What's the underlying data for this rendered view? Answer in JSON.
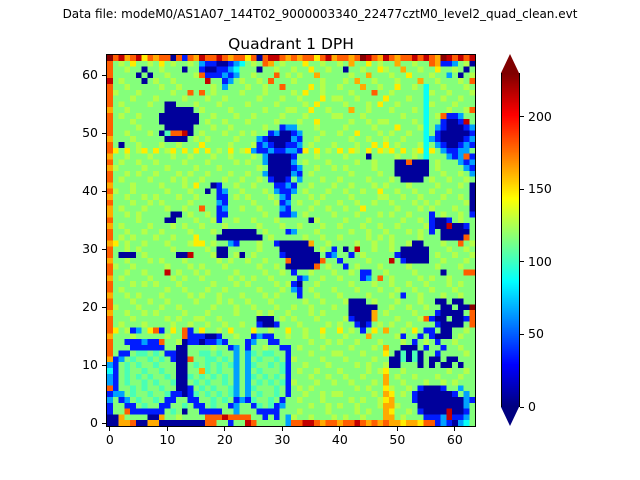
{
  "figure": {
    "datafile_label": "Data file: modeM0/AS1A07_144T02_9000003340_22477cztM0_level2_quad_clean.evt",
    "background": "#ffffff"
  },
  "chart_data": {
    "type": "heatmap",
    "title": "Quadrant 1 DPH",
    "xlabel": "",
    "ylabel": "",
    "x_ticks": [
      0,
      10,
      20,
      30,
      40,
      50,
      60
    ],
    "y_ticks": [
      0,
      10,
      20,
      30,
      40,
      50,
      60
    ],
    "x_range": [
      -0.5,
      63.5
    ],
    "y_range": [
      -0.5,
      63.5
    ],
    "grid_size": 64,
    "colormap": "jet",
    "vmin": 0,
    "vmax": 230,
    "colorbar": {
      "ticks": [
        0,
        50,
        100,
        150,
        200
      ],
      "extend": "both",
      "over_color": "#800000",
      "under_color": "#000080"
    },
    "value_levels": {
      "0": 6,
      "1": 35,
      "2": 65,
      "3": 88,
      "4": 103,
      "5": 116,
      "6": 127,
      "7": 148,
      "8": 163,
      "9": 180,
      "A": 215,
      "B": 228
    },
    "encoding": "rows_top_to_bottom: 64 strings, first string is detector row y=63, last is y=0; each character is one pixel (x=0..63 left to right) indexing value_levels (approximate counts)",
    "rows_top_to_bottom": [
      "B9A89A7989909198A99A98997909AA98989979A89989BA98A9899A9A98BA9A9A",
      "956575565756556521100123565985655575565565855756558556559811,2560",
      "9556550556555055100112355505565565575565505565576558556557556505",
      "9555505055655556911121255655595656558555556558555655755565525056",
      "A5655505655655555A5512565565955565555655565855655565558556555659",
      "9556555556556555556525556556559555575655655585565575565355655565",
      "9655565555565595956555565556555565755655556555955655555365565556",
      "9555655565555655565565555565556556555756655655557555655355655655",
      "9565555655005556555655556555565555657555565556575565555365556555",
      "8556555555000005655556555556555665575565558556555655565355565569",
      "9565565550000000556555655655556555655556655565555556555356911255",
      "95556555500000005655655565555655565575555565565665555653551001A5",
      "9555565555000005556556555556551225556555565555655575556352100012",
      "955655565049 9A0565556556565512001255565565575556565565535100 0001",
      "8555655555000056565555655521000021556555556556556556555321000012",
      "9505565556556555755556555612100112565556555655757565556352100121",
      "9757567575675757575657567211211221757565757657576757567375211225",
      "8556555655565565556556555652000015556555565550555565565355521291",
      "9565565565555655565555656552000025655565555655655500900056555212",
      "8655556555655556555655555565000012556556565555655500000056555521",
      "9556565565556565565556556552000021565555556555565500000055655652",
      "9565555655565655655565565565100152555655655556555650000565565565",
      "8555655556555657550155655655511215565556556555656555655556555650",
      "9655655555655565505125565556521125655565565565575565565565565550",
      "8556556565556556555115656555652155565655556555566556556555655650",
      "9555655656555565555215555655561256556555655655655655565656555560",
      "8565556555655655955125565565552155565565565575555565556565556550",
      "8556565555500565565115555556551125655556555655565655655515655651",
      "9555565555005556556155655655565555506555565556555556556510015655",
      "85655556555656556555655555655565565556556555655655655556100A0015",
      "9556556556555565556500000056555125556555556556556555656515000005",
      "9565655565565557555000000005655555655655655556565655556555000095",
      "8756556555655567756552155565510000085565555655655655600555655956",
      "95565655555655555650055555655500000056515 05A55655650000055565565",
      "95000565555500A555600560565555100000051255156555551000005655655 6",
      "855655565655565555565655655655590000095515555655 5A51000055655565",
      "9655655555655565655565555565565000009565515655565555655556555655",
      "9556556555A565565655556555565565155655565565115565555655550555 99",
      "8565555655565655655556565655655551255655655512595655556565565555",
      "9555656565556555556555656555565610556555556555655655655655565655",
      "9565555555655655565565555565556521565556555655565565565565556555",
      "8556565556555565655655565556565551556555655556555651556555655655",
      "9555655655655556555656556555655555655655560005655565556550050055",
      "96555655565565555565556556555655655655565500000556556556550 0500B",
      "8556556565555655565555655565655655565655550000856555565551000059",
      "9555655555656556655655555500056565556555561000855565556910050019",
      "9565556555565565565565565510015556555565655101565655655551000059",
      "9756125791575915755657555755655755655755756515758556575115005565",
      "8555655555655911100155655121155655655655565558555561551510005655",
      "9551112119556011011215551255115555565565655655565556515651556555",
      "9555111111550055556551251556551156555655556555658550005155155655",
      "9511544545110055445455252454455155565556655565557504040551555565",
      "8125455454510095544545252545545165555655565555655004040500500555",
      "2154545545550054545454252455454155655565555656556005550505005055",
      "3154554554550055845455252545554156556555655556567556555555565565",
      "2154545455450045454545252454545155565565565565558565565556555655",
      "2154554545540054545545252545454165556556556555658556555655656555",
      "9155454554550015454554252455545156565555555656557655651000155255",
      "1225455455411014545454252545545155655656655555658756510000001525",
      "2512545545115511554545121455451556555655556565567855510000000021",
      "1551154551155451154551255145412555565565655655568865550000000025",
      "155911111154505511115525551111555655556555565655875565100 00A0015",
      "0085555008556555 5999A99995515152655655565655655588565551112A1125",
      "0088900880000000099551 55A955555299AA9899899A98989887887991210235"
    ]
  }
}
